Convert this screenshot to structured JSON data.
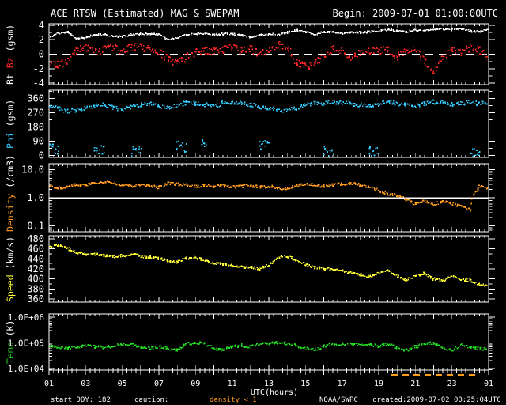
{
  "header": {
    "title": "ACE RTSW (Estimated) MAG & SWEPAM",
    "begin": "Begin: 2009-07-01 01:00:00UTC"
  },
  "colors": {
    "background": "#000000",
    "frame": "#ffffff",
    "bt": "#ffffff",
    "bz": "#ff2626",
    "phi": "#33ccff",
    "density": "#ff9c1e",
    "speed": "#ffff33",
    "temp": "#22dd22",
    "caution": "#ff9c1e"
  },
  "ylabels": {
    "panel1": {
      "part1": "Bt",
      "part2": "Bz",
      "part3": "(gsm)"
    },
    "panel2": {
      "part1": "Phi",
      "part2": "(gsm)"
    },
    "panel3": {
      "part1": "Density",
      "part2": "(/cm3)"
    },
    "panel4": {
      "part1": "Speed",
      "part2": "(km/s)"
    },
    "panel5": {
      "part1": "Temp",
      "part2": "(K)"
    }
  },
  "footer": {
    "xlabel": "UTC(hours)",
    "hour_labels": [
      "01",
      "03",
      "05",
      "07",
      "09",
      "11",
      "13",
      "15",
      "17",
      "19",
      "21",
      "23",
      "01"
    ],
    "start_doy": "start DOY: 182",
    "caution_label": "caution:",
    "caution_value": "density < 1",
    "agency": "NOAA/SWPC",
    "created": "created:2009-07-02 00:25:04UTC",
    "caution_marks": {
      "from_hour": 19.7,
      "to_hour": 24.3
    }
  },
  "chart_data": [
    {
      "type": "scatter",
      "panel": "mag",
      "ylabel": "Bt Bz (gsm)",
      "yscale": "linear",
      "ylim": [
        -4.2,
        4.2
      ],
      "ytick_values": [
        4,
        2,
        0,
        -2,
        -4
      ],
      "ytick_labels": [
        "4",
        "2",
        "0",
        "-2",
        "-4"
      ],
      "yminor_step": 1,
      "refline": {
        "value": 0,
        "style": "dashed"
      },
      "x_start": 1,
      "x_step": 0.5,
      "x_unit": "UTC hours",
      "series": [
        {
          "name": "Bt",
          "color_key": "bt",
          "jitter": 0.12,
          "values": [
            2.3,
            2.9,
            3.0,
            2.1,
            2.3,
            2.7,
            2.7,
            2.5,
            2.4,
            2.7,
            2.8,
            2.8,
            2.7,
            2.0,
            2.2,
            2.7,
            2.8,
            2.9,
            2.7,
            2.8,
            2.8,
            2.6,
            2.3,
            2.6,
            2.8,
            2.7,
            3.0,
            3.3,
            3.1,
            2.7,
            3.1,
            3.0,
            2.9,
            3.0,
            3.0,
            3.1,
            3.2,
            3.4,
            3.2,
            3.1,
            3.3,
            3.2,
            3.4,
            3.5,
            3.4,
            3.5,
            3.2,
            3.1,
            3.4
          ]
        },
        {
          "name": "Bz",
          "color_key": "bz",
          "jitter": 0.5,
          "values": [
            -1.2,
            -1.5,
            -1.0,
            0.5,
            1.0,
            0.3,
            0.6,
            0.9,
            0.4,
            0.9,
            1.0,
            0.6,
            0.4,
            -0.7,
            -1.3,
            -0.4,
            0.3,
            0.5,
            0.4,
            0.6,
            1.1,
            0.4,
            0.8,
            -0.2,
            0.6,
            1.3,
            0.9,
            -1.0,
            -1.7,
            -1.4,
            -0.4,
            0.9,
            0.4,
            -0.4,
            0.3,
            0.5,
            0.4,
            0.6,
            -0.4,
            0.3,
            0.6,
            -0.9,
            -2.4,
            -0.4,
            0.4,
            0.3,
            0.9,
            0.6,
            -0.7
          ]
        }
      ]
    },
    {
      "type": "scatter",
      "panel": "phi",
      "ylabel": "Phi (gsm)",
      "yscale": "linear",
      "ylim": [
        -12,
        412
      ],
      "ytick_values": [
        360,
        270,
        180,
        90,
        0
      ],
      "ytick_labels": [
        "360",
        "270",
        "180",
        "90",
        "0"
      ],
      "yminor_step": 45,
      "x_start": 1,
      "x_step": 0.5,
      "x_unit": "UTC hours",
      "series": [
        {
          "name": "Phi",
          "color_key": "phi",
          "jitter": 13,
          "values": [
            310,
            295,
            280,
            285,
            300,
            315,
            320,
            300,
            288,
            305,
            318,
            328,
            308,
            298,
            318,
            332,
            328,
            322,
            308,
            332,
            338,
            328,
            318,
            308,
            298,
            288,
            283,
            298,
            318,
            332,
            328,
            338,
            332,
            328,
            318,
            308,
            322,
            338,
            328,
            318,
            312,
            328,
            338,
            332,
            322,
            328,
            338,
            328,
            332
          ]
        },
        {
          "name": "Phi-low",
          "color_key": "phi",
          "jitter": 30,
          "cluster": 8,
          "values": [
            55,
            30,
            null,
            null,
            null,
            45,
            35,
            null,
            null,
            25,
            35,
            null,
            null,
            null,
            65,
            45,
            null,
            70,
            null,
            null,
            null,
            null,
            null,
            60,
            75,
            null,
            null,
            null,
            null,
            null,
            30,
            20,
            null,
            null,
            null,
            25,
            35,
            null,
            null,
            null,
            null,
            null,
            null,
            null,
            null,
            null,
            20,
            25,
            null
          ]
        }
      ]
    },
    {
      "type": "scatter",
      "panel": "density",
      "ylabel": "Density (/cm3)",
      "yscale": "log",
      "ylim": [
        0.062,
        16.5
      ],
      "ytick_values": [
        10,
        1,
        0.1
      ],
      "ytick_labels": [
        "10.0",
        "1.0",
        "0.1"
      ],
      "refline": {
        "value": 1,
        "style": "solid"
      },
      "x_start": 1,
      "x_step": 0.5,
      "x_unit": "UTC hours",
      "series": [
        {
          "name": "Density",
          "color_key": "density",
          "jitter": 0.05,
          "values": [
            2.6,
            2.2,
            2.5,
            3.0,
            2.9,
            3.3,
            3.6,
            3.4,
            2.9,
            2.6,
            2.9,
            2.6,
            2.3,
            3.3,
            3.1,
            2.9,
            2.6,
            2.8,
            2.5,
            2.7,
            2.4,
            2.6,
            2.8,
            2.4,
            2.6,
            2.3,
            2.1,
            2.6,
            3.1,
            2.9,
            2.6,
            2.9,
            3.1,
            3.3,
            2.9,
            2.4,
            1.8,
            1.4,
            1.2,
            0.9,
            0.6,
            0.8,
            0.55,
            0.75,
            0.6,
            0.5,
            0.35,
            2.6,
            2.3
          ]
        }
      ]
    },
    {
      "type": "scatter",
      "panel": "speed",
      "ylabel": "Speed (km/s)",
      "yscale": "linear",
      "ylim": [
        353.5,
        486.5
      ],
      "ytick_values": [
        480,
        460,
        440,
        420,
        400,
        380,
        360
      ],
      "ytick_labels": [
        "480",
        "460",
        "440",
        "420",
        "400",
        "380",
        "360"
      ],
      "yminor_step": 10,
      "x_start": 1,
      "x_step": 0.5,
      "x_unit": "UTC hours",
      "series": [
        {
          "name": "Speed",
          "color_key": "speed",
          "jitter": 2.5,
          "values": [
            462,
            468,
            461,
            452,
            450,
            449,
            447,
            445,
            446,
            449,
            446,
            443,
            441,
            437,
            434,
            441,
            443,
            437,
            431,
            429,
            427,
            425,
            423,
            421,
            427,
            442,
            446,
            438,
            429,
            423,
            421,
            419,
            416,
            412,
            408,
            405,
            411,
            416,
            405,
            398,
            406,
            411,
            400,
            396,
            406,
            399,
            397,
            389,
            386
          ]
        }
      ]
    },
    {
      "type": "scatter",
      "panel": "temp",
      "ylabel": "Temp (K)",
      "yscale": "log",
      "ylim": [
        8600,
        1350000
      ],
      "ytick_values": [
        1000000,
        100000,
        10000
      ],
      "ytick_labels": [
        "1.0E+06",
        "1.0E+05",
        "1.0E+04"
      ],
      "refline": {
        "value": 100000,
        "style": "dashed"
      },
      "x_start": 1,
      "x_step": 0.5,
      "x_unit": "UTC hours",
      "series": [
        {
          "name": "Temp",
          "color_key": "temp",
          "jitter": 0.055,
          "values": [
            80000,
            70000,
            63000,
            70000,
            80000,
            70000,
            65000,
            75000,
            90000,
            85000,
            70000,
            63000,
            70000,
            60000,
            52000,
            93000,
            100000,
            93000,
            60000,
            50000,
            70000,
            80000,
            70000,
            90000,
            95000,
            100000,
            93000,
            80000,
            60000,
            55000,
            70000,
            95000,
            90000,
            85000,
            90000,
            85000,
            75000,
            90000,
            60000,
            50000,
            70000,
            90000,
            100000,
            60000,
            50000,
            80000,
            70000,
            60000,
            55000
          ]
        }
      ]
    }
  ]
}
